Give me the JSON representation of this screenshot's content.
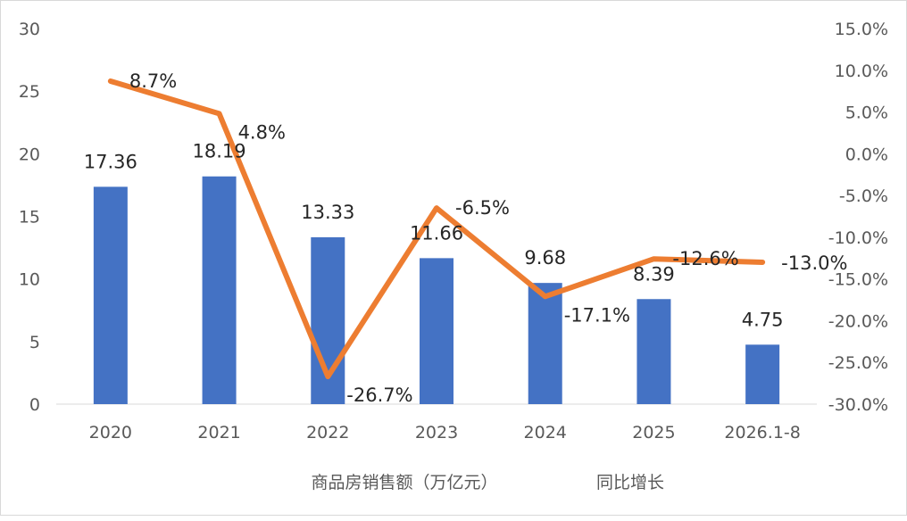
{
  "chart_data": {
    "type": "bar",
    "title": "",
    "categories": [
      "2020",
      "2021",
      "2022",
      "2023",
      "2024",
      "2025",
      "2026.1-8"
    ],
    "series": [
      {
        "name": "商品房销售额（万亿元）",
        "type": "bar",
        "axis": "left",
        "values": [
          17.36,
          18.19,
          13.33,
          11.66,
          9.68,
          8.39,
          4.75
        ],
        "labels": [
          "17.36",
          "18.19",
          "13.33",
          "11.66",
          "9.68",
          "8.39",
          "4.75"
        ]
      },
      {
        "name": "同比增长",
        "type": "line",
        "axis": "right",
        "values": [
          8.7,
          4.8,
          -26.7,
          -6.5,
          -17.1,
          -12.6,
          -13.0
        ],
        "labels": [
          "8.7%",
          "4.8%",
          "-26.7%",
          "-6.5%",
          "-17.1%",
          "-12.6%",
          "-13.0%"
        ]
      }
    ],
    "y_left": {
      "min": 0,
      "max": 30,
      "ticks": [
        "0",
        "5",
        "10",
        "15",
        "20",
        "25",
        "30"
      ]
    },
    "y_right": {
      "min": -30,
      "max": 15,
      "ticks": [
        "-30.0%",
        "-25.0%",
        "-20.0%",
        "-15.0%",
        "-10.0%",
        "-5.0%",
        "0.0%",
        "5.0%",
        "10.0%",
        "15.0%"
      ]
    },
    "grid": false,
    "legend_position": "bottom",
    "colors": {
      "bar": "#4472c4",
      "line": "#ed7d31"
    }
  }
}
